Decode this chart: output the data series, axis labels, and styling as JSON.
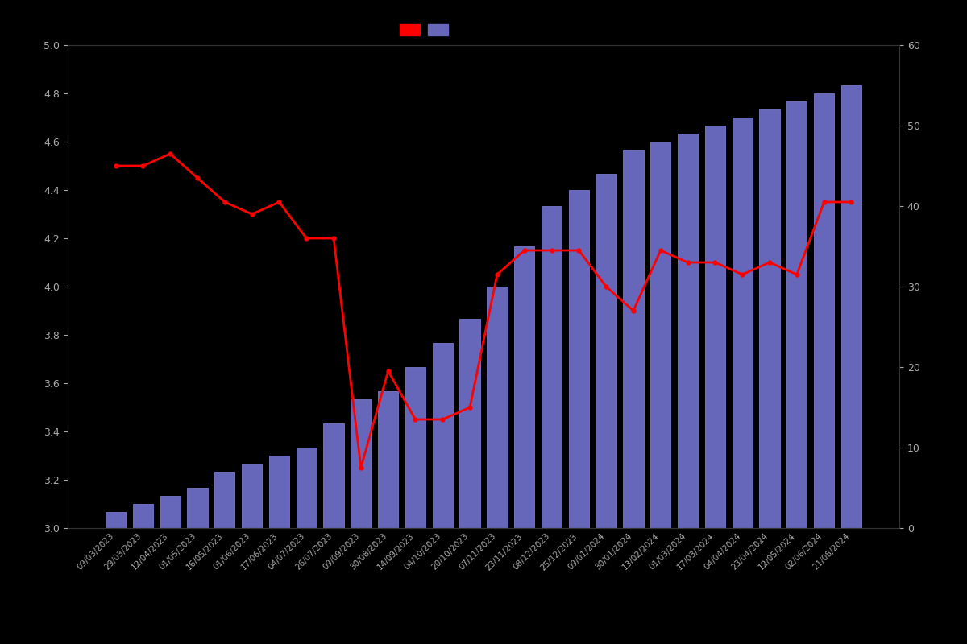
{
  "dates": [
    "09/03/2023",
    "29/03/2023",
    "12/04/2023",
    "01/05/2023",
    "16/05/2023",
    "01/06/2023",
    "17/06/2023",
    "04/07/2023",
    "26/07/2023",
    "09/09/2023",
    "30/08/2023",
    "14/09/2023",
    "04/10/2023",
    "20/10/2023",
    "07/11/2023",
    "23/11/2023",
    "08/12/2023",
    "25/12/2023",
    "09/01/2024",
    "30/01/2024",
    "13/02/2024",
    "01/03/2024",
    "17/03/2024",
    "04/04/2024",
    "23/04/2024",
    "12/05/2024",
    "02/06/2024",
    "21/08/2024"
  ],
  "bar_counts": [
    2,
    3,
    4,
    5,
    7,
    8,
    9,
    10,
    13,
    16,
    17,
    20,
    23,
    26,
    30,
    35,
    40,
    42,
    44,
    47,
    48,
    49,
    50,
    51,
    52,
    53,
    54,
    55
  ],
  "line_ratings": [
    4.5,
    4.5,
    4.55,
    4.45,
    4.35,
    4.3,
    4.35,
    4.2,
    4.2,
    3.25,
    3.65,
    3.45,
    3.45,
    3.5,
    4.05,
    4.15,
    4.15,
    4.15,
    4.0,
    3.9,
    4.15,
    4.1,
    4.1,
    4.05,
    4.1,
    4.05,
    4.35,
    4.35
  ],
  "bar_color": "#6666BB",
  "bar_edge_color": "#8888DD",
  "line_color": "#FF0000",
  "background_color": "#000000",
  "text_color": "#AAAAAA",
  "ylim_left": [
    3.0,
    5.0
  ],
  "ylim_right": [
    0,
    60
  ],
  "yticks_left": [
    3.0,
    3.2,
    3.4,
    3.6,
    3.8,
    4.0,
    4.2,
    4.4,
    4.6,
    4.8,
    5.0
  ],
  "yticks_right": [
    0,
    10,
    20,
    30,
    40,
    50,
    60
  ],
  "figsize": [
    12.0,
    8.0
  ],
  "dpi": 100
}
